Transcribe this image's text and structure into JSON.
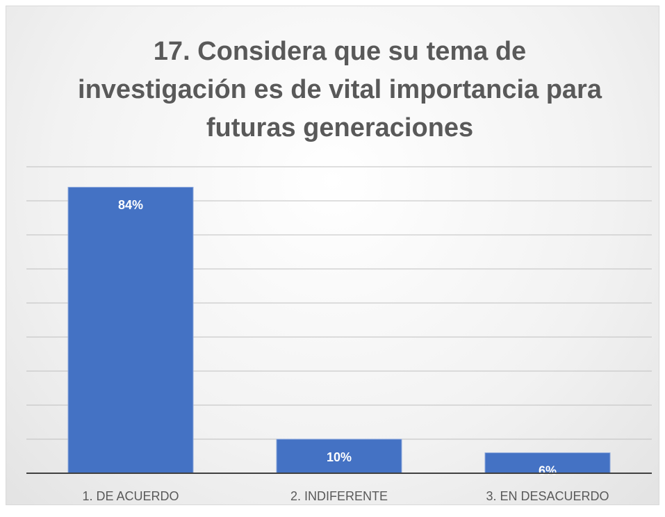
{
  "chart_data": {
    "type": "bar",
    "title": "17. Considera que su tema de investigación es de vital importancia para futuras generaciones",
    "categories": [
      "1. DE ACUERDO",
      "2. INDIFERENTE",
      "3. EN DESACUERDO"
    ],
    "values": [
      84,
      10,
      6
    ],
    "value_labels": [
      "84%",
      "10%",
      "6%"
    ],
    "color": "#4472c4",
    "ylim": [
      0,
      90
    ],
    "yticks": [
      0,
      10,
      20,
      30,
      40,
      50,
      60,
      70,
      80,
      90
    ],
    "grid": true
  }
}
